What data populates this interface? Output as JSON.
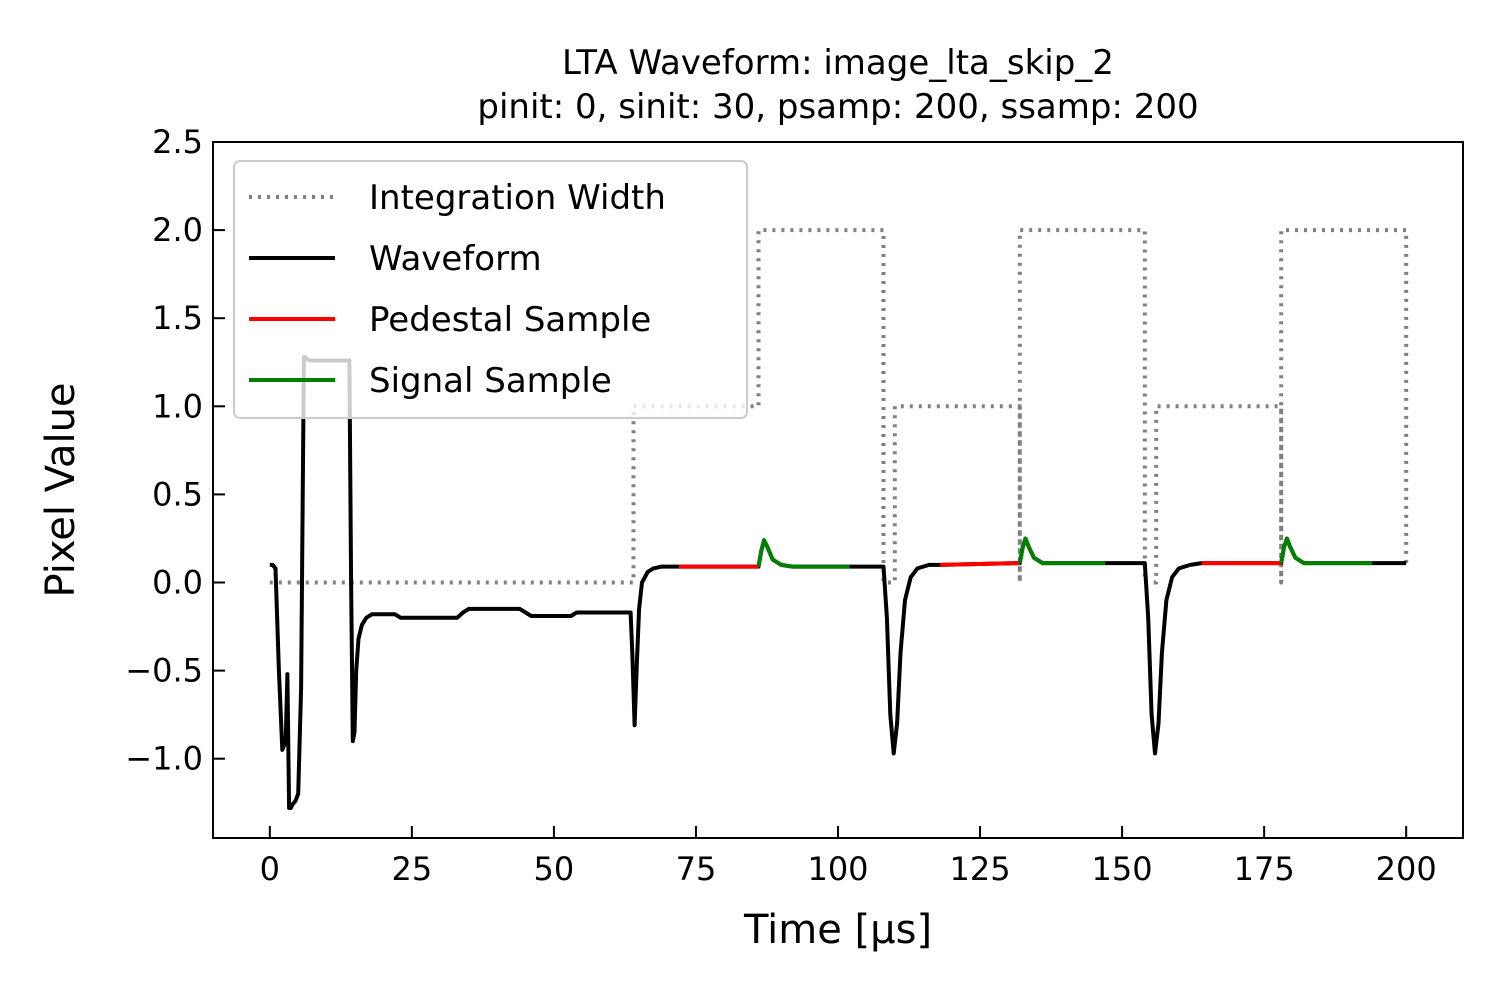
{
  "chart_data": {
    "type": "line",
    "title": "LTA Waveform: image_lta_skip_2",
    "subtitle": "pinit: 0, sinit: 30, psamp: 200, ssamp: 200",
    "xlabel": "Time [μs]",
    "ylabel": "Pixel Value",
    "xlim": [
      -10,
      210
    ],
    "ylim": [
      -1.45,
      2.5
    ],
    "xticks": [
      0,
      25,
      50,
      75,
      100,
      125,
      150,
      175,
      200
    ],
    "xtick_labels": [
      "0",
      "25",
      "50",
      "75",
      "100",
      "125",
      "150",
      "175",
      "200"
    ],
    "yticks": [
      -1.0,
      -0.5,
      0.0,
      0.5,
      1.0,
      1.5,
      2.0,
      2.5
    ],
    "ytick_labels": [
      "−1.0",
      "−0.5",
      "0.0",
      "0.5",
      "1.0",
      "1.5",
      "2.0",
      "2.5"
    ],
    "grid": false,
    "legend_position": "top-left",
    "legend": [
      {
        "label": "Integration Width",
        "color": "#808080",
        "style": "dotted"
      },
      {
        "label": "Waveform",
        "color": "#000000",
        "style": "solid"
      },
      {
        "label": "Pedestal Sample",
        "color": "#ff0000",
        "style": "solid"
      },
      {
        "label": "Signal Sample",
        "color": "#008000",
        "style": "solid"
      }
    ],
    "series": [
      {
        "name": "Integration Width",
        "color": "#808080",
        "style": "dotted",
        "x": [
          0,
          64,
          64,
          86,
          86,
          108,
          108,
          110,
          110,
          132,
          132,
          132,
          132,
          154,
          154,
          156,
          156,
          178,
          178,
          178,
          178,
          200,
          200
        ],
        "y": [
          0,
          0,
          1,
          1,
          2,
          2,
          0,
          0,
          1,
          1,
          0,
          0,
          2,
          2,
          0,
          0,
          1,
          1,
          0,
          0,
          2,
          2,
          0.1
        ]
      },
      {
        "name": "Waveform",
        "color": "#000000",
        "style": "solid",
        "x": [
          0,
          0.5,
          1,
          1.6,
          2.2,
          2.8,
          3.1,
          3.4,
          3.7,
          4,
          4.5,
          5,
          5.5,
          6,
          6.2,
          6.5,
          7,
          10,
          13,
          14,
          14.3,
          14.6,
          14.9,
          15.2,
          15.6,
          16.2,
          17,
          18,
          20,
          22,
          23,
          24,
          28,
          33,
          34,
          35,
          40,
          44,
          45,
          46,
          50,
          53,
          54,
          55,
          63.5,
          63.8,
          64.2,
          64.6,
          65,
          65.5,
          66.5,
          67.5,
          69,
          71,
          72,
          86,
          86.5,
          87,
          87.6,
          88.5,
          90,
          92,
          95,
          102,
          108,
          108.6,
          109.2,
          109.8,
          110.4,
          111,
          111.8,
          112.8,
          114,
          116,
          118,
          132,
          132.5,
          133,
          133.6,
          134.5,
          136,
          138,
          141,
          147,
          154,
          154.6,
          155.2,
          155.8,
          156.4,
          157,
          157.8,
          158.8,
          160,
          162,
          164,
          178,
          178.5,
          179,
          179.6,
          180.5,
          182,
          184,
          187,
          194,
          200
        ],
        "y": [
          0.1,
          0.1,
          0.08,
          -0.5,
          -0.95,
          -0.9,
          -0.52,
          -1.28,
          -1.28,
          -1.26,
          -1.24,
          -1.2,
          -0.6,
          1.28,
          1.28,
          1.27,
          1.26,
          1.26,
          1.26,
          1.26,
          0.0,
          -0.9,
          -0.85,
          -0.5,
          -0.32,
          -0.24,
          -0.2,
          -0.18,
          -0.18,
          -0.18,
          -0.2,
          -0.2,
          -0.2,
          -0.2,
          -0.17,
          -0.15,
          -0.15,
          -0.15,
          -0.17,
          -0.19,
          -0.19,
          -0.19,
          -0.17,
          -0.17,
          -0.17,
          -0.4,
          -0.81,
          -0.45,
          -0.15,
          0.0,
          0.06,
          0.08,
          0.09,
          0.09,
          0.09,
          0.09,
          0.18,
          0.24,
          0.2,
          0.13,
          0.1,
          0.09,
          0.09,
          0.09,
          0.09,
          -0.2,
          -0.75,
          -0.97,
          -0.8,
          -0.4,
          -0.1,
          0.03,
          0.08,
          0.1,
          0.1,
          0.11,
          0.2,
          0.25,
          0.2,
          0.14,
          0.11,
          0.11,
          0.11,
          0.11,
          0.11,
          -0.2,
          -0.75,
          -0.97,
          -0.8,
          -0.4,
          -0.1,
          0.03,
          0.08,
          0.1,
          0.11,
          0.11,
          0.2,
          0.25,
          0.2,
          0.14,
          0.11,
          0.11,
          0.11,
          0.11,
          0.11
        ]
      },
      {
        "name": "Pedestal Sample",
        "color": "#ff0000",
        "style": "solid",
        "segments": [
          {
            "x": [
              72,
              86
            ],
            "y": [
              0.09,
              0.09
            ]
          },
          {
            "x": [
              118,
              132
            ],
            "y": [
              0.1,
              0.11
            ]
          },
          {
            "x": [
              164,
              178
            ],
            "y": [
              0.11,
              0.11
            ]
          }
        ]
      },
      {
        "name": "Signal Sample",
        "color": "#008000",
        "style": "solid",
        "segments": [
          {
            "x": [
              86,
              86.5,
              87,
              87.6,
              88.5,
              90,
              92,
              95,
              102
            ],
            "y": [
              0.09,
              0.18,
              0.24,
              0.2,
              0.13,
              0.1,
              0.09,
              0.09,
              0.09
            ]
          },
          {
            "x": [
              132,
              132.5,
              133,
              133.6,
              134.5,
              136,
              138,
              141,
              147
            ],
            "y": [
              0.11,
              0.2,
              0.25,
              0.2,
              0.14,
              0.11,
              0.11,
              0.11,
              0.11
            ]
          },
          {
            "x": [
              178,
              178.5,
              179,
              179.6,
              180.5,
              182,
              184,
              187,
              194
            ],
            "y": [
              0.11,
              0.2,
              0.25,
              0.2,
              0.14,
              0.11,
              0.11,
              0.11,
              0.11
            ]
          }
        ]
      }
    ]
  }
}
